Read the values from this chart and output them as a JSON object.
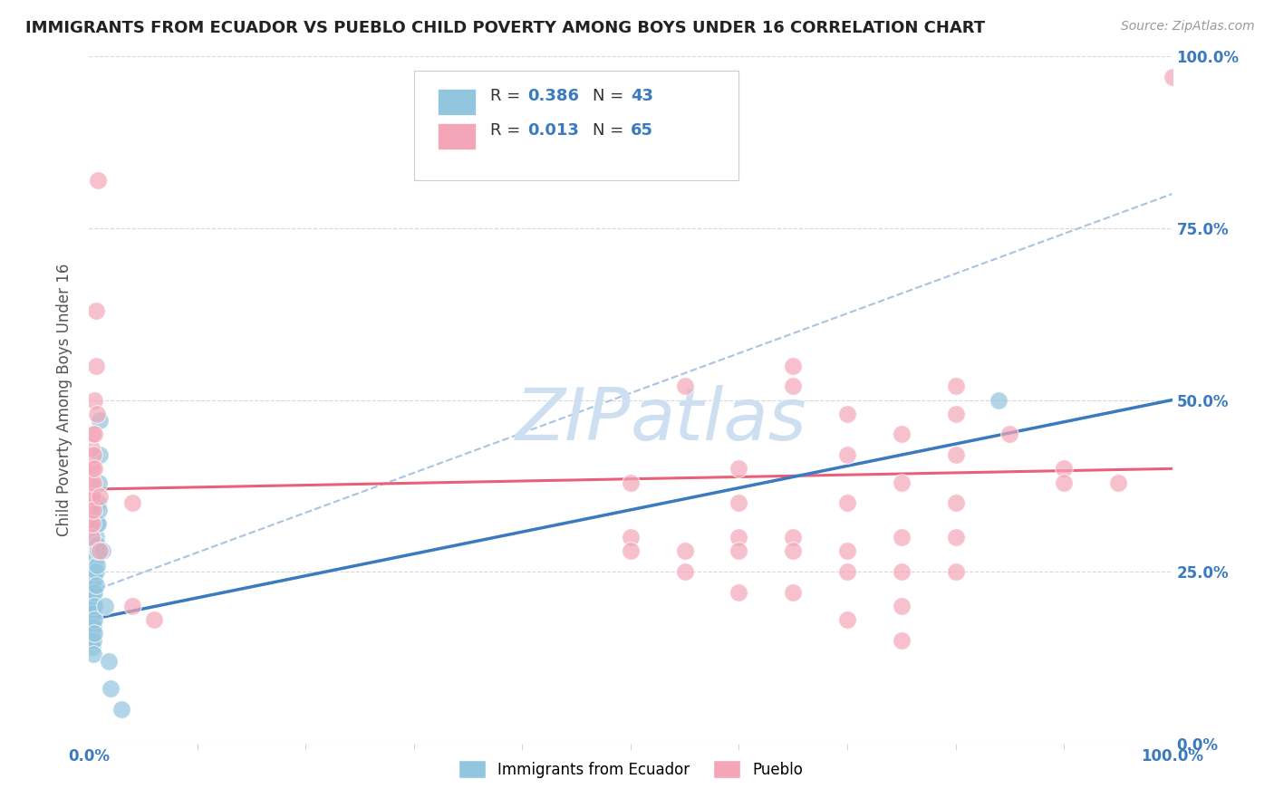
{
  "title": "IMMIGRANTS FROM ECUADOR VS PUEBLO CHILD POVERTY AMONG BOYS UNDER 16 CORRELATION CHART",
  "source": "Source: ZipAtlas.com",
  "ylabel": "Child Poverty Among Boys Under 16",
  "x_tick_labels": [
    "0.0%",
    "100.0%"
  ],
  "y_tick_labels": [
    "0.0%",
    "25.0%",
    "50.0%",
    "75.0%",
    "100.0%"
  ],
  "x_tick_positions": [
    0.0,
    1.0
  ],
  "y_tick_positions": [
    0.0,
    0.25,
    0.5,
    0.75,
    1.0
  ],
  "legend_r1": "R = 0.386",
  "legend_n1": "N = 43",
  "legend_r2": "R = 0.013",
  "legend_n2": "N = 65",
  "legend_label1": "Immigrants from Ecuador",
  "legend_label2": "Pueblo",
  "blue_color": "#92c5de",
  "pink_color": "#f4a6b8",
  "blue_line_color": "#3a7abf",
  "pink_line_color": "#e8607a",
  "dashed_line_color": "#a8c4e0",
  "watermark_color": "#cddff0",
  "background_color": "#ffffff",
  "grid_color": "#d8d8d8",
  "blue_scatter": [
    [
      0.001,
      0.2
    ],
    [
      0.001,
      0.18
    ],
    [
      0.002,
      0.22
    ],
    [
      0.002,
      0.17
    ],
    [
      0.002,
      0.15
    ],
    [
      0.002,
      0.19
    ],
    [
      0.003,
      0.23
    ],
    [
      0.003,
      0.18
    ],
    [
      0.003,
      0.16
    ],
    [
      0.003,
      0.14
    ],
    [
      0.003,
      0.2
    ],
    [
      0.004,
      0.25
    ],
    [
      0.004,
      0.22
    ],
    [
      0.004,
      0.19
    ],
    [
      0.004,
      0.17
    ],
    [
      0.004,
      0.15
    ],
    [
      0.004,
      0.13
    ],
    [
      0.005,
      0.28
    ],
    [
      0.005,
      0.24
    ],
    [
      0.005,
      0.22
    ],
    [
      0.005,
      0.2
    ],
    [
      0.005,
      0.18
    ],
    [
      0.005,
      0.16
    ],
    [
      0.006,
      0.3
    ],
    [
      0.006,
      0.27
    ],
    [
      0.006,
      0.25
    ],
    [
      0.006,
      0.23
    ],
    [
      0.007,
      0.32
    ],
    [
      0.007,
      0.29
    ],
    [
      0.007,
      0.26
    ],
    [
      0.008,
      0.35
    ],
    [
      0.008,
      0.32
    ],
    [
      0.008,
      0.28
    ],
    [
      0.009,
      0.38
    ],
    [
      0.009,
      0.34
    ],
    [
      0.01,
      0.47
    ],
    [
      0.01,
      0.42
    ],
    [
      0.012,
      0.28
    ],
    [
      0.015,
      0.2
    ],
    [
      0.018,
      0.12
    ],
    [
      0.02,
      0.08
    ],
    [
      0.03,
      0.05
    ],
    [
      0.84,
      0.5
    ]
  ],
  "pink_scatter": [
    [
      0.001,
      0.4
    ],
    [
      0.001,
      0.36
    ],
    [
      0.001,
      0.32
    ],
    [
      0.002,
      0.43
    ],
    [
      0.002,
      0.38
    ],
    [
      0.002,
      0.34
    ],
    [
      0.002,
      0.3
    ],
    [
      0.003,
      0.45
    ],
    [
      0.003,
      0.4
    ],
    [
      0.003,
      0.36
    ],
    [
      0.003,
      0.32
    ],
    [
      0.004,
      0.42
    ],
    [
      0.004,
      0.38
    ],
    [
      0.004,
      0.34
    ],
    [
      0.005,
      0.5
    ],
    [
      0.005,
      0.45
    ],
    [
      0.005,
      0.4
    ],
    [
      0.006,
      0.63
    ],
    [
      0.006,
      0.55
    ],
    [
      0.007,
      0.48
    ],
    [
      0.008,
      0.82
    ],
    [
      0.01,
      0.36
    ],
    [
      0.01,
      0.28
    ],
    [
      0.04,
      0.35
    ],
    [
      0.04,
      0.2
    ],
    [
      0.06,
      0.18
    ],
    [
      0.5,
      0.38
    ],
    [
      0.5,
      0.3
    ],
    [
      0.5,
      0.28
    ],
    [
      0.55,
      0.52
    ],
    [
      0.55,
      0.28
    ],
    [
      0.55,
      0.25
    ],
    [
      0.6,
      0.4
    ],
    [
      0.6,
      0.35
    ],
    [
      0.6,
      0.3
    ],
    [
      0.6,
      0.28
    ],
    [
      0.6,
      0.22
    ],
    [
      0.65,
      0.55
    ],
    [
      0.65,
      0.52
    ],
    [
      0.65,
      0.3
    ],
    [
      0.65,
      0.28
    ],
    [
      0.65,
      0.22
    ],
    [
      0.7,
      0.48
    ],
    [
      0.7,
      0.42
    ],
    [
      0.7,
      0.35
    ],
    [
      0.7,
      0.28
    ],
    [
      0.7,
      0.25
    ],
    [
      0.7,
      0.18
    ],
    [
      0.75,
      0.45
    ],
    [
      0.75,
      0.38
    ],
    [
      0.75,
      0.3
    ],
    [
      0.75,
      0.25
    ],
    [
      0.75,
      0.2
    ],
    [
      0.75,
      0.15
    ],
    [
      0.8,
      0.52
    ],
    [
      0.8,
      0.48
    ],
    [
      0.8,
      0.42
    ],
    [
      0.8,
      0.35
    ],
    [
      0.8,
      0.3
    ],
    [
      0.8,
      0.25
    ],
    [
      0.85,
      0.45
    ],
    [
      0.9,
      0.4
    ],
    [
      0.9,
      0.38
    ],
    [
      0.95,
      0.38
    ],
    [
      1.0,
      0.97
    ]
  ],
  "blue_trend_x": [
    0.0,
    1.0
  ],
  "blue_trend_y": [
    0.18,
    0.5
  ],
  "pink_trend_x": [
    0.0,
    1.0
  ],
  "pink_trend_y": [
    0.37,
    0.4
  ],
  "dashed_trend_x": [
    0.0,
    1.0
  ],
  "dashed_trend_y": [
    0.22,
    0.8
  ]
}
